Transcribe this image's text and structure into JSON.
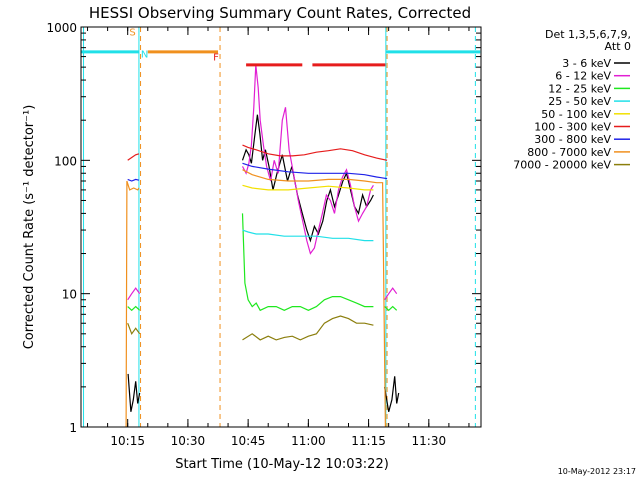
{
  "chart_data": {
    "type": "line",
    "title": "HESSI Observing Summary Count Rates, Corrected",
    "xlabel": "Start Time (10-May-12 10:03:22)",
    "ylabel": "Corrected Count Rate (s⁻¹ detector⁻¹)",
    "yscale": "log",
    "ylim": [
      1,
      1000
    ],
    "yticks": [
      {
        "label": "1",
        "value": 1
      },
      {
        "label": "10",
        "value": 10
      },
      {
        "label": "100",
        "value": 100
      },
      {
        "label": "1000",
        "value": 1000
      }
    ],
    "xticks": [
      {
        "label": "10:15",
        "minute": 15
      },
      {
        "label": "10:30",
        "minute": 30
      },
      {
        "label": "10:45",
        "minute": 45
      },
      {
        "label": "11:00",
        "minute": 60
      },
      {
        "label": "11:15",
        "minute": 75
      },
      {
        "label": "11:30",
        "minute": 90
      }
    ],
    "xlim_minutes": [
      3.37,
      103
    ],
    "legend_header": [
      "Det 1,3,5,6,7,9,",
      "Att 0"
    ],
    "legend_placement": "right",
    "series": [
      {
        "name": "3 - 6 keV",
        "color": "#000000",
        "segments": [
          [
            [
              15.1,
              2.5
            ],
            [
              15.8,
              1.3
            ],
            [
              16.4,
              1.6
            ],
            [
              17.0,
              2.2
            ],
            [
              17.5,
              1.5
            ],
            [
              18.0,
              1.8
            ]
          ],
          [
            [
              43.6,
              100
            ],
            [
              44.5,
              120
            ],
            [
              45.2,
              110
            ],
            [
              45.8,
              95
            ],
            [
              46.6,
              150
            ],
            [
              47.3,
              220
            ],
            [
              47.9,
              160
            ],
            [
              48.6,
              100
            ],
            [
              49.3,
              120
            ],
            [
              50.2,
              90
            ],
            [
              51.2,
              60
            ],
            [
              52.2,
              80
            ],
            [
              53.5,
              110
            ],
            [
              54.8,
              70
            ],
            [
              55.9,
              90
            ],
            [
              57.3,
              55
            ],
            [
              58.5,
              40
            ],
            [
              59.6,
              30
            ],
            [
              60.5,
              25
            ],
            [
              61.5,
              32
            ],
            [
              62.5,
              28
            ],
            [
              63.6,
              35
            ],
            [
              64.6,
              50
            ],
            [
              65.5,
              60
            ],
            [
              66.5,
              45
            ],
            [
              67.5,
              55
            ],
            [
              68.6,
              70
            ],
            [
              69.5,
              80
            ],
            [
              70.5,
              60
            ],
            [
              71.5,
              45
            ],
            [
              72.5,
              40
            ],
            [
              73.5,
              55
            ],
            [
              74.5,
              45
            ],
            [
              75.5,
              50
            ],
            [
              76.2,
              55
            ]
          ],
          [
            [
              79.0,
              2.0
            ],
            [
              80.0,
              1.3
            ],
            [
              80.8,
              1.6
            ],
            [
              81.5,
              2.4
            ],
            [
              82.0,
              1.5
            ],
            [
              82.5,
              1.8
            ]
          ]
        ]
      },
      {
        "name": "6 - 12 keV",
        "color": "#e11fd3",
        "segments": [
          [
            [
              15.0,
              9
            ],
            [
              16.0,
              10
            ],
            [
              17.0,
              11
            ],
            [
              18.0,
              10
            ]
          ],
          [
            [
              43.6,
              90
            ],
            [
              44.5,
              80
            ],
            [
              45.2,
              95
            ],
            [
              45.8,
              130
            ],
            [
              46.4,
              250
            ],
            [
              46.9,
              520
            ],
            [
              47.5,
              350
            ],
            [
              48.0,
              200
            ],
            [
              48.8,
              130
            ],
            [
              49.6,
              90
            ],
            [
              50.6,
              70
            ],
            [
              51.5,
              100
            ],
            [
              52.5,
              80
            ],
            [
              53.5,
              200
            ],
            [
              54.3,
              250
            ],
            [
              55.2,
              120
            ],
            [
              56.3,
              80
            ],
            [
              57.5,
              50
            ],
            [
              58.6,
              35
            ],
            [
              59.6,
              25
            ],
            [
              60.5,
              20
            ],
            [
              61.5,
              22
            ],
            [
              62.5,
              30
            ],
            [
              63.5,
              40
            ],
            [
              64.5,
              55
            ],
            [
              65.5,
              50
            ],
            [
              66.5,
              40
            ],
            [
              67.5,
              60
            ],
            [
              68.5,
              75
            ],
            [
              69.5,
              85
            ],
            [
              70.5,
              65
            ],
            [
              71.5,
              45
            ],
            [
              72.5,
              35
            ],
            [
              73.5,
              40
            ],
            [
              74.5,
              45
            ],
            [
              75.5,
              60
            ],
            [
              76.2,
              65
            ]
          ],
          [
            [
              79.0,
              9
            ],
            [
              80.0,
              10
            ],
            [
              81.0,
              11
            ],
            [
              82.0,
              10
            ]
          ]
        ]
      },
      {
        "name": "12 - 25 keV",
        "color": "#1ee81e",
        "segments": [
          [
            [
              15.0,
              8
            ],
            [
              16.0,
              7.5
            ],
            [
              17.0,
              8
            ],
            [
              18.0,
              7.5
            ]
          ],
          [
            [
              43.6,
              40
            ],
            [
              44.2,
              12
            ],
            [
              45.0,
              9
            ],
            [
              46.0,
              8
            ],
            [
              47.0,
              8.5
            ],
            [
              48.0,
              7.5
            ],
            [
              50.0,
              8
            ],
            [
              52.0,
              8
            ],
            [
              54.0,
              7.5
            ],
            [
              56.0,
              8
            ],
            [
              58.0,
              8
            ],
            [
              60.0,
              7.5
            ],
            [
              62.0,
              8
            ],
            [
              64.0,
              9
            ],
            [
              66.0,
              9.5
            ],
            [
              68.0,
              9.5
            ],
            [
              70.0,
              9
            ],
            [
              72.0,
              8.5
            ],
            [
              74.0,
              8
            ],
            [
              76.2,
              8
            ]
          ],
          [
            [
              79.0,
              8
            ],
            [
              80.0,
              7.5
            ],
            [
              81.0,
              8
            ],
            [
              82.0,
              7.5
            ]
          ]
        ]
      },
      {
        "name": "25 - 50 keV",
        "color": "#20e0e8",
        "segments": [
          [
            [
              3.4,
              650
            ],
            [
              17.8,
              650
            ]
          ],
          [
            [
              79.3,
              650
            ],
            [
              102.8,
              650
            ]
          ],
          [
            [
              43.6,
              30
            ],
            [
              45.0,
              29
            ],
            [
              47.0,
              28
            ],
            [
              50.0,
              28
            ],
            [
              54.0,
              27
            ],
            [
              58.0,
              27
            ],
            [
              62.0,
              27
            ],
            [
              66.0,
              26
            ],
            [
              70.0,
              26
            ],
            [
              74.0,
              25
            ],
            [
              76.2,
              25
            ]
          ]
        ]
      },
      {
        "name": "50 - 100 keV",
        "color": "#f2e000",
        "segments": [
          [
            [
              43.6,
              65
            ],
            [
              46.0,
              62
            ],
            [
              50.0,
              60
            ],
            [
              55.0,
              60
            ],
            [
              60.0,
              62
            ],
            [
              65.0,
              64
            ],
            [
              70.0,
              62
            ],
            [
              74.0,
              60
            ],
            [
              76.2,
              60
            ]
          ]
        ]
      },
      {
        "name": "100 - 300 keV",
        "color": "#e61c1c",
        "segments": [
          [
            [
              15.0,
              100
            ],
            [
              16.0,
              105
            ],
            [
              17.0,
              110
            ],
            [
              17.8,
              112
            ]
          ],
          [
            [
              43.6,
              130
            ],
            [
              45.0,
              125
            ],
            [
              47.0,
              120
            ],
            [
              50.0,
              112
            ],
            [
              53.0,
              108
            ],
            [
              56.0,
              108
            ],
            [
              59.0,
              110
            ],
            [
              62.0,
              115
            ],
            [
              65.0,
              118
            ],
            [
              68.0,
              122
            ],
            [
              71.0,
              118
            ],
            [
              74.0,
              110
            ],
            [
              77.0,
              104
            ],
            [
              79.6,
              100
            ]
          ],
          [
            [
              44.5,
              520
            ],
            [
              58.5,
              520
            ]
          ],
          [
            [
              61.0,
              520
            ],
            [
              79.2,
              520
            ]
          ]
        ]
      },
      {
        "name": "300 - 800 keV",
        "color": "#1f22e8",
        "segments": [
          [
            [
              15.0,
              72
            ],
            [
              16.0,
              70
            ],
            [
              17.0,
              72
            ],
            [
              17.8,
              71
            ]
          ],
          [
            [
              43.6,
              95
            ],
            [
              46.0,
              90
            ],
            [
              50.0,
              86
            ],
            [
              55.0,
              82
            ],
            [
              60.0,
              80
            ],
            [
              65.0,
              80
            ],
            [
              70.0,
              80
            ],
            [
              74.0,
              78
            ],
            [
              77.0,
              75
            ],
            [
              79.6,
              73
            ]
          ]
        ]
      },
      {
        "name": "800 - 7000 keV",
        "color": "#f0901e",
        "segments": [
          [
            [
              14.6,
              1
            ],
            [
              14.8,
              70
            ],
            [
              15.5,
              60
            ],
            [
              16.5,
              62
            ],
            [
              17.5,
              60
            ],
            [
              17.8,
              62
            ]
          ],
          [
            [
              20.0,
              650
            ],
            [
              37.5,
              650
            ]
          ],
          [
            [
              43.6,
              85
            ],
            [
              46.0,
              78
            ],
            [
              50.0,
              72
            ],
            [
              55.0,
              70
            ],
            [
              60.0,
              70
            ],
            [
              65.0,
              72
            ],
            [
              70.0,
              72
            ],
            [
              74.0,
              70
            ],
            [
              77.0,
              68
            ],
            [
              78.5,
              68
            ],
            [
              79.2,
              1
            ]
          ]
        ]
      },
      {
        "name": "7000 - 20000 keV",
        "color": "#8b7e0c",
        "segments": [
          [
            [
              15.0,
              6
            ],
            [
              16.0,
              5
            ],
            [
              17.0,
              5.5
            ],
            [
              18.0,
              5
            ]
          ],
          [
            [
              43.6,
              4.5
            ],
            [
              46.0,
              5
            ],
            [
              48.0,
              4.5
            ],
            [
              50.0,
              4.8
            ],
            [
              52.0,
              4.5
            ],
            [
              54.0,
              4.7
            ],
            [
              56.0,
              4.8
            ],
            [
              58.0,
              4.5
            ],
            [
              60.0,
              4.8
            ],
            [
              62.0,
              5
            ],
            [
              64.0,
              6
            ],
            [
              66.0,
              6.5
            ],
            [
              68.0,
              6.8
            ],
            [
              70.0,
              6.5
            ],
            [
              72.0,
              6
            ],
            [
              74.0,
              6
            ],
            [
              76.2,
              5.8
            ]
          ]
        ]
      }
    ],
    "vertical_markers": [
      {
        "minute": 17.8,
        "color": "#20e0e8",
        "style": "solid"
      },
      {
        "minute": 18.2,
        "color": "#f0901e",
        "style": "dashed"
      },
      {
        "minute": 38.0,
        "color": "#f0901e",
        "style": "dashed"
      },
      {
        "minute": 79.3,
        "color": "#20e0e8",
        "style": "solid"
      },
      {
        "minute": 79.6,
        "color": "#f0901e",
        "style": "dashed"
      },
      {
        "minute": 4.0,
        "color": "#20e0e8",
        "style": "solid"
      },
      {
        "minute": 101.6,
        "color": "#20e0e8",
        "style": "dashed"
      }
    ],
    "annotations": [
      {
        "label": "S",
        "minute": 16.2,
        "value": 860,
        "color": "#f0901e"
      },
      {
        "label": "N",
        "minute": 19.2,
        "value": 590,
        "color": "#20e0e8"
      },
      {
        "label": "F",
        "minute": 37.0,
        "value": 560,
        "color": "#e61c1c"
      }
    ]
  },
  "footer": {
    "date_stamp": "10-May-2012 23:17"
  }
}
